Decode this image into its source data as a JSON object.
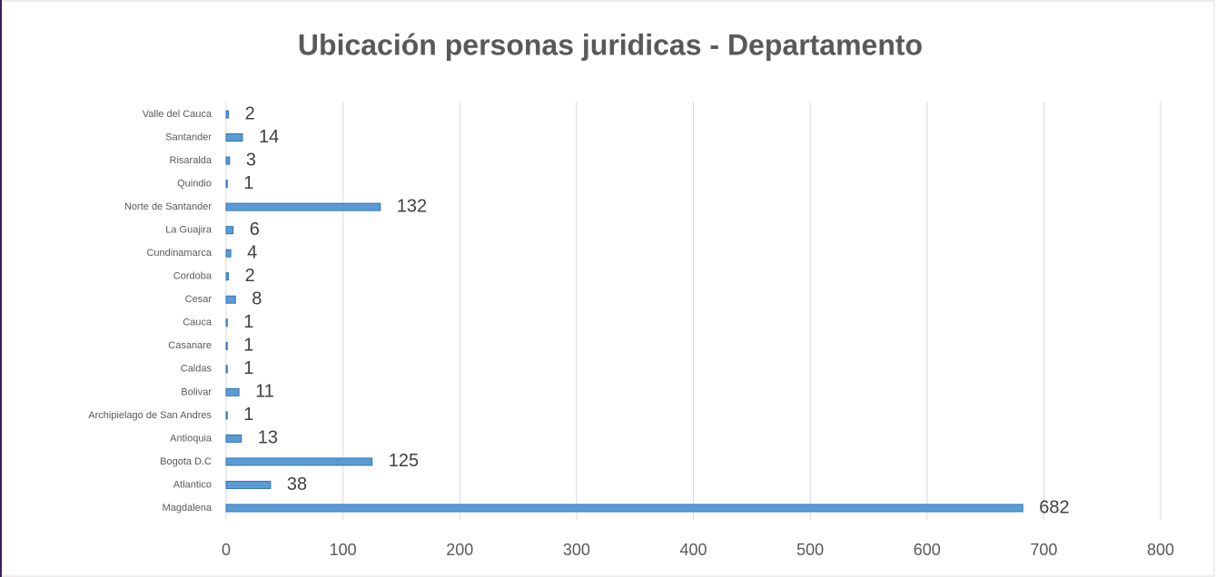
{
  "chart_data": {
    "type": "bar",
    "orientation": "horizontal",
    "title": "Ubicación personas juridicas - Departamento",
    "categories": [
      "Magdalena",
      "Atlantico",
      "Bogota D.C",
      "Antioquia",
      "Archipielago de San Andres",
      "Bolivar",
      "Caldas",
      "Casanare",
      "Cauca",
      "Cesar",
      "Cordoba",
      "Cundinamarca",
      "La Guajira",
      "Norte de Santander",
      "Quindio",
      "Risaralda",
      "Santander",
      "Valle del Cauca"
    ],
    "values": [
      682,
      38,
      125,
      13,
      1,
      11,
      1,
      1,
      1,
      8,
      2,
      4,
      6,
      132,
      1,
      3,
      14,
      2
    ],
    "color": "#5b9bd5",
    "xlim": [
      0,
      800
    ],
    "xticks": [
      0,
      100,
      200,
      300,
      400,
      500,
      600,
      700,
      800
    ],
    "grid": true
  }
}
